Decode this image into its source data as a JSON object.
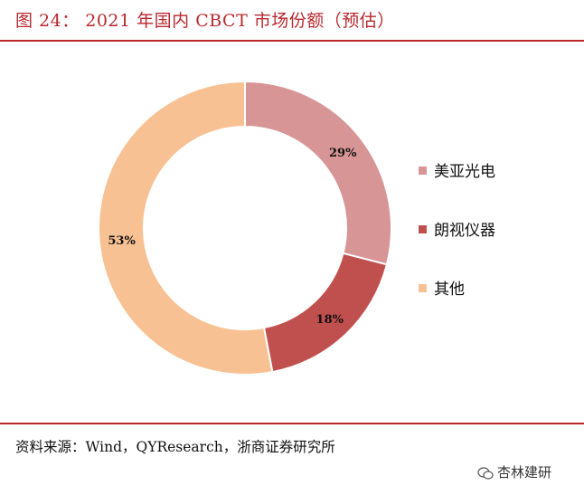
{
  "figure": {
    "title": "图 24： 2021 年国内 CBCT 市场份额（预估）",
    "source": "资料来源：Wind，QYResearch，浙商证券研究所",
    "watermark": "杏林建研"
  },
  "chart_data": {
    "type": "pie",
    "donut": true,
    "categories": [
      "美亚光电",
      "朗视仪器",
      "其他"
    ],
    "values": [
      29,
      18,
      53
    ],
    "labels": [
      "29%",
      "18%",
      "53%"
    ],
    "colors": [
      "#d89595",
      "#c0504d",
      "#f8c193"
    ],
    "legend": "right"
  }
}
